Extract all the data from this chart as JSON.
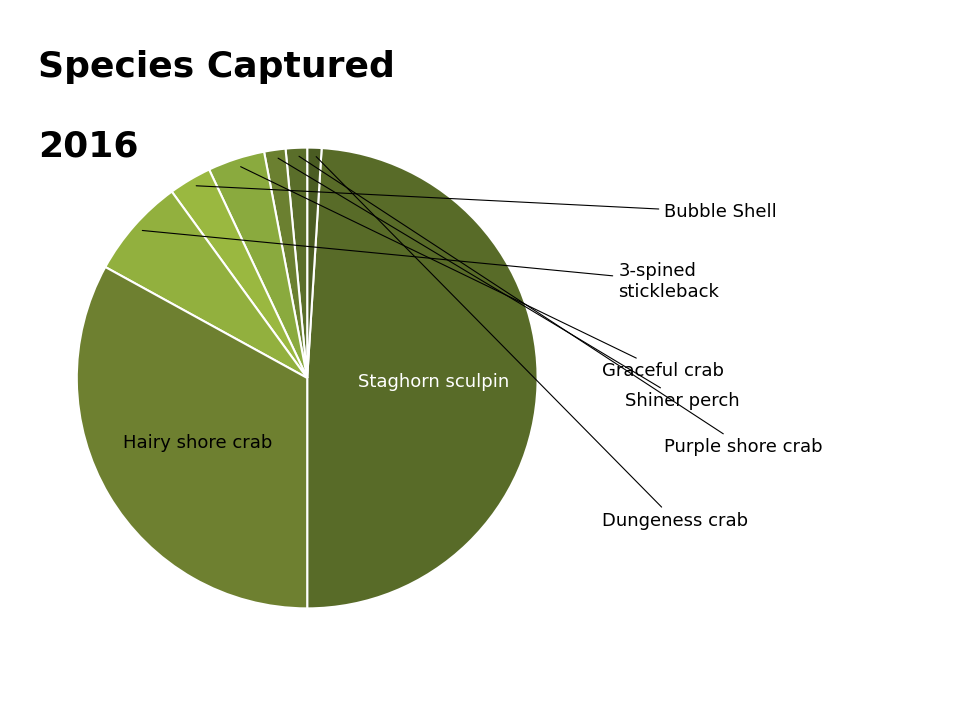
{
  "title_line1": "Species Captured",
  "title_line2": "2016",
  "title_fontsize": 26,
  "title_fontweight": "bold",
  "labels": [
    "Staghorn sculpin",
    "Dungeness crab",
    "Purple shore crab",
    "Shiner perch",
    "Graceful crab",
    "Bubble Shell",
    "3-spined\nstickleback",
    "Hairy shore crab"
  ],
  "values": [
    49,
    1,
    1.5,
    1.5,
    4,
    3,
    7,
    33
  ],
  "colors": [
    "#586b28",
    "#586b28",
    "#6b7f30",
    "#7a9035",
    "#8ca840",
    "#8fad40",
    "#93b040",
    "#748030"
  ],
  "startangle": 270,
  "background_color": "#ffffff",
  "label_fontsize": 13,
  "internal_labels": [
    "Staghorn sculpin",
    "Hairy shore crab"
  ],
  "external_labels": [
    "Dungeness crab",
    "Purple shore crab",
    "Shiner perch",
    "Graceful crab",
    "Bubble Shell",
    "3-spined\nstickleback"
  ]
}
